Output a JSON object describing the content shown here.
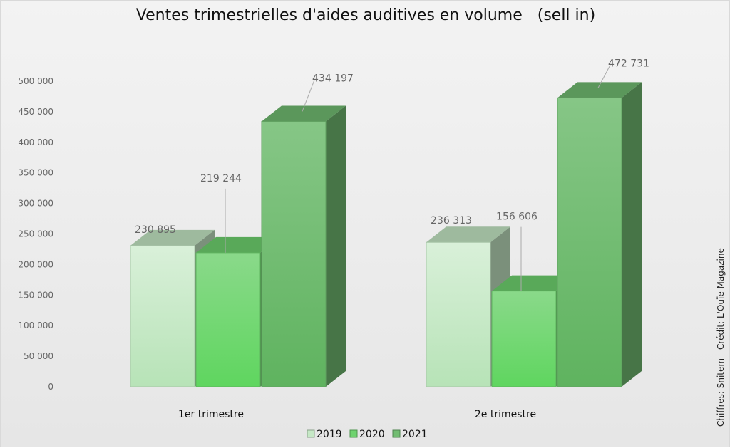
{
  "chart_data": {
    "type": "bar",
    "title": "Ventes trimestrielles d'aides auditives en volume   (sell in)",
    "credit": "Chiffres: Snitem - Crédit: L'Ouïe Magazine",
    "categories": [
      "1er trimestre",
      "2e trimestre"
    ],
    "series": [
      {
        "name": "2019",
        "values": [
          230895,
          236313
        ]
      },
      {
        "name": "2020",
        "values": [
          219244,
          156606
        ]
      },
      {
        "name": "2021",
        "values": [
          434197,
          472731
        ]
      }
    ],
    "data_labels": {
      "2019": [
        "230 895",
        "236 313"
      ],
      "2020": [
        "219 244",
        "156 606"
      ],
      "2021": [
        "434 197",
        "472 731"
      ]
    },
    "y_ticks": [
      0,
      50000,
      100000,
      150000,
      200000,
      250000,
      300000,
      350000,
      400000,
      450000,
      500000
    ],
    "y_tick_labels": [
      "0",
      "50 000",
      "100 000",
      "150 000",
      "200 000",
      "250 000",
      "300 000",
      "350 000",
      "400 000",
      "450 000",
      "500 000"
    ],
    "ylim": [
      0,
      500000
    ],
    "xlabel": "",
    "ylabel": "",
    "grid": false,
    "legend_position": "bottom",
    "style": "3d-column",
    "colors": {
      "2019": "#c6e8c6",
      "2020": "#6fd36f",
      "2021": "#72bd72"
    }
  }
}
